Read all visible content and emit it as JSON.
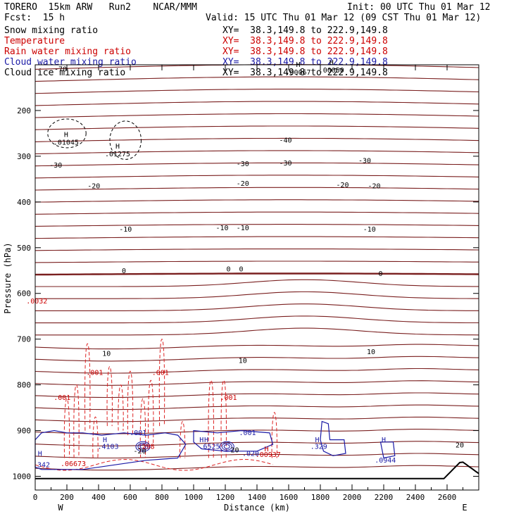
{
  "header": {
    "model_line": "TORERO  15km ARW   Run2    NCAR/MMM",
    "init_line": "Init: 00 UTC Thu 01 Mar 12",
    "fcst_line": "Fcst:  15 h",
    "valid_line": "Valid: 15 UTC Thu 01 Mar 12 (09 CST Thu 01 Mar 12)"
  },
  "fields": [
    {
      "name": "Snow mixing ratio",
      "xy": "XY=  38.3,149.8 to 222.9,149.8",
      "color": "#000000"
    },
    {
      "name": "Temperature",
      "xy": "XY=  38.3,149.8 to 222.9,149.8",
      "color": "#cc0000"
    },
    {
      "name": "Rain water mixing ratio",
      "xy": "XY=  38.3,149.8 to 222.9,149.8",
      "color": "#cc0000"
    },
    {
      "name": "Cloud water mixing ratio",
      "xy": "XY=  38.3,149.8 to 222.9,149.8",
      "color": "#1a1aa6"
    },
    {
      "name": "Cloud ice mixing ratio",
      "xy": "XY=  38.3,149.8 to 222.9,149.8",
      "color": "#000000"
    }
  ],
  "chart_data": {
    "type": "contour-cross-section",
    "xlabel": "Distance (km)",
    "ylabel": "Pressure (hPa)",
    "xlim": [
      0,
      2800
    ],
    "ylim": [
      1030,
      100
    ],
    "x_ticks": [
      0,
      200,
      400,
      600,
      800,
      1000,
      1200,
      1400,
      1600,
      1800,
      2000,
      2200,
      2400,
      2600
    ],
    "y_ticks": [
      200,
      300,
      400,
      500,
      600,
      700,
      800,
      900,
      1000
    ],
    "x_end_labels": {
      "left": "W",
      "right": "E"
    },
    "temperature_labels": [
      {
        "text": "-70",
        "x": 160,
        "p": 115
      },
      {
        "text": "-40",
        "x": 1580,
        "p": 270
      },
      {
        "text": "-30",
        "x": 130,
        "p": 325
      },
      {
        "text": "-30",
        "x": 1310,
        "p": 322
      },
      {
        "text": "-30",
        "x": 1580,
        "p": 320
      },
      {
        "text": "-30",
        "x": 2080,
        "p": 315
      },
      {
        "text": "-20",
        "x": 370,
        "p": 370
      },
      {
        "text": "-20",
        "x": 1310,
        "p": 365
      },
      {
        "text": "-20",
        "x": 1940,
        "p": 368
      },
      {
        "text": "-20",
        "x": 2140,
        "p": 370
      },
      {
        "text": "-10",
        "x": 570,
        "p": 465
      },
      {
        "text": "-10",
        "x": 1180,
        "p": 462
      },
      {
        "text": "-10",
        "x": 1310,
        "p": 462
      },
      {
        "text": "-10",
        "x": 2110,
        "p": 465
      },
      {
        "text": "0",
        "x": 560,
        "p": 556
      },
      {
        "text": "0",
        "x": 1220,
        "p": 552
      },
      {
        "text": "0",
        "x": 1300,
        "p": 552
      },
      {
        "text": "0",
        "x": 2180,
        "p": 562
      },
      {
        "text": "10",
        "x": 450,
        "p": 737
      },
      {
        "text": "10",
        "x": 1310,
        "p": 752
      },
      {
        "text": "10",
        "x": 2120,
        "p": 733
      },
      {
        "text": "20",
        "x": 2680,
        "p": 937
      },
      {
        "text": "-20",
        "x": 660,
        "p": 950
      },
      {
        "text": "20",
        "x": 1260,
        "p": 948
      }
    ],
    "rain_labels": [
      {
        "text": ".0032",
        "x": 10,
        "p": 622
      },
      {
        "text": ".001",
        "x": 375,
        "p": 778
      },
      {
        "text": ".001",
        "x": 790,
        "p": 778
      },
      {
        "text": ".001",
        "x": 170,
        "p": 833
      },
      {
        "text": ".001",
        "x": 1220,
        "p": 833
      },
      {
        "text": ".00937",
        "x": 1470,
        "p": 958
      },
      {
        "text": ".06673",
        "x": 240,
        "p": 978
      },
      {
        "text": ".298",
        "x": 700,
        "p": 940
      }
    ],
    "cloud_water_labels": [
      {
        "text": ".001",
        "x": 650,
        "p": 910
      },
      {
        "text": ".001",
        "x": 1340,
        "p": 910
      },
      {
        "text": ".4103",
        "x": 460,
        "p": 940
      },
      {
        "text": ".6525",
        "x": 1100,
        "p": 940
      },
      {
        "text": ".329",
        "x": 1790,
        "p": 940
      },
      {
        "text": ".0944",
        "x": 2210,
        "p": 970
      },
      {
        "text": ".342",
        "x": 40,
        "p": 980
      },
      {
        "text": ".020",
        "x": 1360,
        "p": 955
      }
    ],
    "max_labels": [
      {
        "text": "H",
        "x": 195,
        "p": 258,
        "v": ".01045"
      },
      {
        "text": "H",
        "x": 520,
        "p": 283,
        "v": ".01275"
      },
      {
        "text": "H",
        "x": 1660,
        "p": 105,
        "v": ".00067"
      },
      {
        "text": "H",
        "x": 1870,
        "p": 100,
        "v": ".00050"
      }
    ],
    "series": [
      {
        "name": "Temperature",
        "color": "#7a1f1f"
      },
      {
        "name": "Rain water mixing ratio",
        "color": "#dd2222"
      },
      {
        "name": "Cloud water mixing ratio",
        "color": "#1a1aa6"
      }
    ]
  }
}
